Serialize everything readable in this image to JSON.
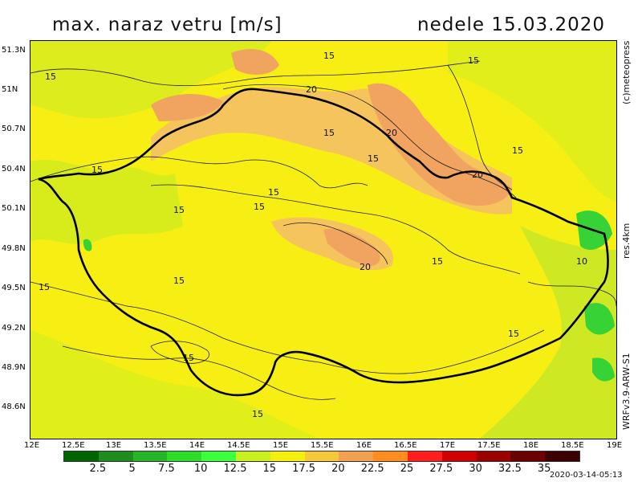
{
  "title": "max. naraz vetru [m/s]",
  "date": "nedele 15.03.2020",
  "credit": "(c)meteopress",
  "resolution": "res.4km",
  "model": "WRFv3.9-ARW-S1",
  "timestamp": "2020-03-14-05:13",
  "lat_labels": [
    "51.3N",
    "51N",
    "50.7N",
    "50.4N",
    "50.1N",
    "49.8N",
    "49.5N",
    "49.2N",
    "48.9N",
    "48.6N"
  ],
  "lon_labels": [
    "12E",
    "12.5E",
    "13E",
    "13.5E",
    "14E",
    "14.5E",
    "15E",
    "15.5E",
    "16E",
    "16.5E",
    "17E",
    "17.5E",
    "18E",
    "18.5E",
    "19E"
  ],
  "contour_labels": [
    "15",
    "15",
    "15",
    "15",
    "15",
    "15",
    "15",
    "15",
    "15",
    "15",
    "15",
    "15",
    "15",
    "15",
    "15",
    "15",
    "20",
    "20",
    "20",
    "20",
    "10"
  ],
  "legend": {
    "labels": [
      "2.5",
      "5",
      "7.5",
      "10",
      "12.5",
      "15",
      "17.5",
      "20",
      "22.5",
      "25",
      "27.5",
      "30",
      "32.5",
      "35"
    ],
    "colors": [
      "#006400",
      "#1e8c1e",
      "#27b427",
      "#2edc2e",
      "#3dff3d",
      "#c8f020",
      "#f5ef10",
      "#f5c83c",
      "#f0a050",
      "#ff8c1e",
      "#ff1e1e",
      "#d00000",
      "#9a0000",
      "#6a0000",
      "#3c0000"
    ]
  },
  "map_colors": {
    "base": "#f7ef14",
    "low": "#c6e828",
    "orange": "#f0a460",
    "lightorange": "#f5c660",
    "green": "#36d236",
    "border": "#000000"
  }
}
